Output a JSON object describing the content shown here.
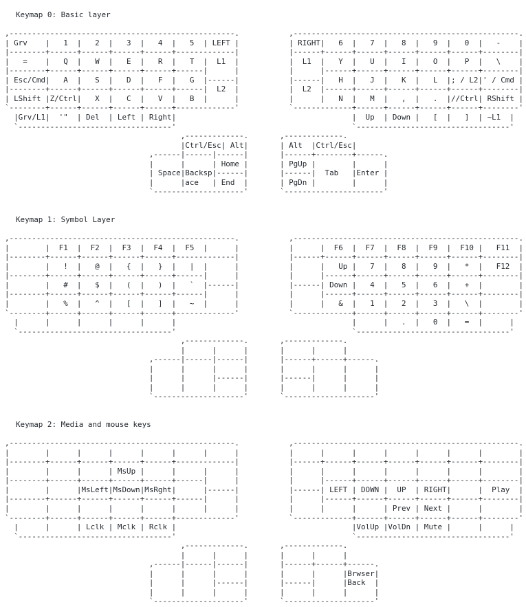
{
  "page": {
    "background_color": "#ffffff",
    "text_color": "#24292f"
  },
  "keymaps": [
    {
      "title": "Keymap 0: Basic layer",
      "art": [
        ",--------------------------------------------------.           ,--------------------------------------------------.",
        "| Grv    |   1  |   2  |   3  |   4  |   5  | LEFT |           | RIGHT|   6  |   7  |   8  |   9  |   0  |   -    |",
        "|--------+------+------+------+------+-------------|           |------+------+------+------+------+------+--------|",
        "|   =    |   Q  |   W  |   E  |   R  |   T  |  L1  |           |  L1  |   Y  |   U  |   I  |   O  |   P  |   \\    |",
        "|--------+------+------+------+------+------|      |           |      |------+------+------+------+------+--------|",
        "| Esc/Cmd|   A  |   S  |   D  |   F  |   G  |------|           |------|   H  |   J  |   K  |   L  |; / L2|' / Cmd |",
        "|--------+------+------+------+------+------|  L2  |           |  L2  |------+------+------+------+------+--------|",
        "| LShift |Z/Ctrl|   X  |   C  |   V  |   B  |      |           |      |   N  |   M  |   ,  |   .  |//Ctrl| RShift |",
        "`--------+------+------+------+------+-------------'           `-------------+------+------+------+------+--------'",
        "  |Grv/L1|  '\"  | Del  | Left | Right|                                       |  Up  | Down |   [  |   ]  | ~L1  |",
        "  `----------------------------------'                                       `----------------------------------'",
        "                                       ,-------------.       ,-------------.",
        "                                       |Ctrl/Esc| Alt|       | Alt  |Ctrl/Esc|",
        "                                ,------|------|------|       |------+--------+------.",
        "                                |      |      | Home |       | PgUp |        |      |",
        "                                | Space|Backsp|------|       |------|  Tab   |Enter |",
        "                                |      |ace   | End  |       | PgDn |        |      |",
        "                                `--------------------'       `----------------------'"
      ]
    },
    {
      "title": "Keymap 1: Symbol Layer",
      "art": [
        ",--------------------------------------------------.           ,--------------------------------------------------.",
        "|        |  F1  |  F2  |  F3  |  F4  |  F5  |      |           |      |  F6  |  F7  |  F8  |  F9  |  F10 |   F11  |",
        "|--------+------+------+------+------+-------------|           |------+------+------+------+------+------+--------|",
        "|        |   !  |   @  |   {  |   }  |   |  |      |           |      |   Up |   7  |   8  |   9  |   *  |   F12  |",
        "|--------+------+------+------+------+------|      |           |      |------+------+------+------+------+--------|",
        "|        |   #  |   $  |   (  |   )  |   `  |------|           |------| Down |   4  |   5  |   6  |   +  |        |",
        "|--------+------+------+------+------+------|      |           |      |------+------+------+------+------+--------|",
        "|        |   %  |   ^  |   [  |   ]  |   ~  |      |           |      |   &  |   1  |   2  |   3  |   \\  |        |",
        "`--------+------+------+------+------+-------------'           `-------------+------+------+------+------+--------'",
        "  |      |      |      |      |      |                                       |      |   .  |   0  |   =  |      |",
        "  `----------------------------------'                                       `----------------------------------'",
        "                                       ,-------------.       ,-------------.",
        "                                       |      |      |       |      |      |",
        "                                ,------|------|------|       |------+------+------.",
        "                                |      |      |      |       |      |      |      |",
        "                                |      |      |------|       |------|      |      |",
        "                                |      |      |      |       |      |      |      |",
        "                                `--------------------'       `--------------------'"
      ]
    },
    {
      "title": "Keymap 2: Media and mouse keys",
      "art": [
        ",--------------------------------------------------.           ,--------------------------------------------------.",
        "|        |      |      |      |      |      |      |           |      |      |      |      |      |      |        |",
        "|--------+------+------+------+------+-------------|           |------+------+------+------+------+------+--------|",
        "|        |      |      | MsUp |      |      |      |           |      |      |      |      |      |      |        |",
        "|--------+------+------+------+------+------|      |           |      |------+------+------+------+------+--------|",
        "|        |      |MsLeft|MsDown|MsRght|      |------|           |------| LEFT | DOWN |  UP  | RIGHT|      |  Play  |",
        "|--------+------+------+------+------+------|      |           |      |------+------+------+------+------+--------|",
        "|        |      |      |      |      |      |      |           |      |      |      | Prev | Next |      |        |",
        "`--------+------+------+------+------+-------------'           `-------------+------+------+------+------+--------'",
        "  |      |      | Lclk | Mclk | Rclk |                                       |VolUp |VolDn | Mute |      |      |",
        "  `----------------------------------'                                       `----------------------------------'",
        "                                       ,-------------.       ,-------------.",
        "                                       |      |      |       |      |      |",
        "                                ,------|------|------|       |------+------+------.",
        "                                |      |      |      |       |      |      |Brwser|",
        "                                |      |      |------|       |------|      |Back  |",
        "                                |      |      |      |       |      |      |      |",
        "                                `--------------------'       `--------------------'"
      ]
    }
  ]
}
